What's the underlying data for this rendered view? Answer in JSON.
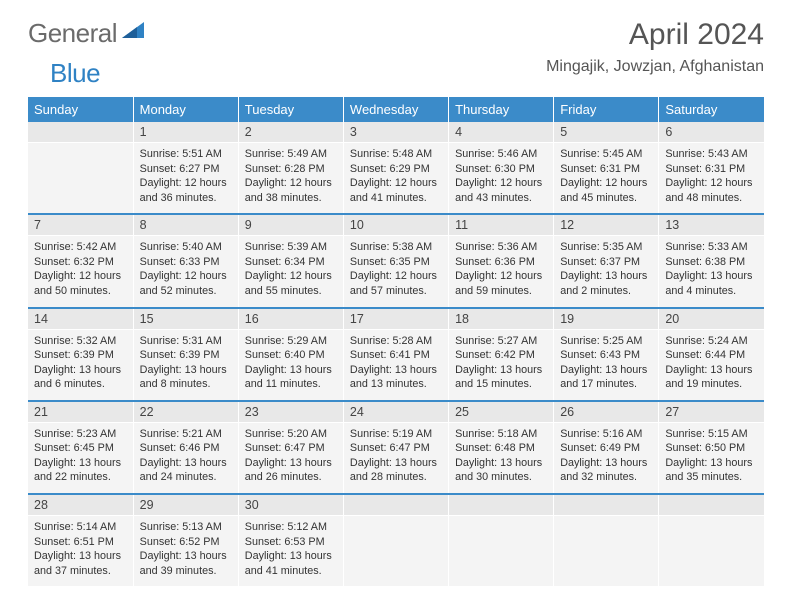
{
  "brand": {
    "word1": "General",
    "word2": "Blue"
  },
  "title": "April 2024",
  "location": "Mingajik, Jowzjan, Afghanistan",
  "colors": {
    "header_bg": "#3b8bc9",
    "header_text": "#ffffff",
    "daynum_bg": "#e8e8e8",
    "cell_bg": "#f4f4f4",
    "sep": "#3b8bc9",
    "logo_gray": "#6b6b6b",
    "logo_blue": "#2f82c4"
  },
  "weekdays": [
    "Sunday",
    "Monday",
    "Tuesday",
    "Wednesday",
    "Thursday",
    "Friday",
    "Saturday"
  ],
  "weeks": [
    {
      "nums": [
        "",
        "1",
        "2",
        "3",
        "4",
        "5",
        "6"
      ],
      "days": [
        null,
        {
          "sr": "Sunrise: 5:51 AM",
          "ss": "Sunset: 6:27 PM",
          "dl": "Daylight: 12 hours and 36 minutes."
        },
        {
          "sr": "Sunrise: 5:49 AM",
          "ss": "Sunset: 6:28 PM",
          "dl": "Daylight: 12 hours and 38 minutes."
        },
        {
          "sr": "Sunrise: 5:48 AM",
          "ss": "Sunset: 6:29 PM",
          "dl": "Daylight: 12 hours and 41 minutes."
        },
        {
          "sr": "Sunrise: 5:46 AM",
          "ss": "Sunset: 6:30 PM",
          "dl": "Daylight: 12 hours and 43 minutes."
        },
        {
          "sr": "Sunrise: 5:45 AM",
          "ss": "Sunset: 6:31 PM",
          "dl": "Daylight: 12 hours and 45 minutes."
        },
        {
          "sr": "Sunrise: 5:43 AM",
          "ss": "Sunset: 6:31 PM",
          "dl": "Daylight: 12 hours and 48 minutes."
        }
      ]
    },
    {
      "nums": [
        "7",
        "8",
        "9",
        "10",
        "11",
        "12",
        "13"
      ],
      "days": [
        {
          "sr": "Sunrise: 5:42 AM",
          "ss": "Sunset: 6:32 PM",
          "dl": "Daylight: 12 hours and 50 minutes."
        },
        {
          "sr": "Sunrise: 5:40 AM",
          "ss": "Sunset: 6:33 PM",
          "dl": "Daylight: 12 hours and 52 minutes."
        },
        {
          "sr": "Sunrise: 5:39 AM",
          "ss": "Sunset: 6:34 PM",
          "dl": "Daylight: 12 hours and 55 minutes."
        },
        {
          "sr": "Sunrise: 5:38 AM",
          "ss": "Sunset: 6:35 PM",
          "dl": "Daylight: 12 hours and 57 minutes."
        },
        {
          "sr": "Sunrise: 5:36 AM",
          "ss": "Sunset: 6:36 PM",
          "dl": "Daylight: 12 hours and 59 minutes."
        },
        {
          "sr": "Sunrise: 5:35 AM",
          "ss": "Sunset: 6:37 PM",
          "dl": "Daylight: 13 hours and 2 minutes."
        },
        {
          "sr": "Sunrise: 5:33 AM",
          "ss": "Sunset: 6:38 PM",
          "dl": "Daylight: 13 hours and 4 minutes."
        }
      ]
    },
    {
      "nums": [
        "14",
        "15",
        "16",
        "17",
        "18",
        "19",
        "20"
      ],
      "days": [
        {
          "sr": "Sunrise: 5:32 AM",
          "ss": "Sunset: 6:39 PM",
          "dl": "Daylight: 13 hours and 6 minutes."
        },
        {
          "sr": "Sunrise: 5:31 AM",
          "ss": "Sunset: 6:39 PM",
          "dl": "Daylight: 13 hours and 8 minutes."
        },
        {
          "sr": "Sunrise: 5:29 AM",
          "ss": "Sunset: 6:40 PM",
          "dl": "Daylight: 13 hours and 11 minutes."
        },
        {
          "sr": "Sunrise: 5:28 AM",
          "ss": "Sunset: 6:41 PM",
          "dl": "Daylight: 13 hours and 13 minutes."
        },
        {
          "sr": "Sunrise: 5:27 AM",
          "ss": "Sunset: 6:42 PM",
          "dl": "Daylight: 13 hours and 15 minutes."
        },
        {
          "sr": "Sunrise: 5:25 AM",
          "ss": "Sunset: 6:43 PM",
          "dl": "Daylight: 13 hours and 17 minutes."
        },
        {
          "sr": "Sunrise: 5:24 AM",
          "ss": "Sunset: 6:44 PM",
          "dl": "Daylight: 13 hours and 19 minutes."
        }
      ]
    },
    {
      "nums": [
        "21",
        "22",
        "23",
        "24",
        "25",
        "26",
        "27"
      ],
      "days": [
        {
          "sr": "Sunrise: 5:23 AM",
          "ss": "Sunset: 6:45 PM",
          "dl": "Daylight: 13 hours and 22 minutes."
        },
        {
          "sr": "Sunrise: 5:21 AM",
          "ss": "Sunset: 6:46 PM",
          "dl": "Daylight: 13 hours and 24 minutes."
        },
        {
          "sr": "Sunrise: 5:20 AM",
          "ss": "Sunset: 6:47 PM",
          "dl": "Daylight: 13 hours and 26 minutes."
        },
        {
          "sr": "Sunrise: 5:19 AM",
          "ss": "Sunset: 6:47 PM",
          "dl": "Daylight: 13 hours and 28 minutes."
        },
        {
          "sr": "Sunrise: 5:18 AM",
          "ss": "Sunset: 6:48 PM",
          "dl": "Daylight: 13 hours and 30 minutes."
        },
        {
          "sr": "Sunrise: 5:16 AM",
          "ss": "Sunset: 6:49 PM",
          "dl": "Daylight: 13 hours and 32 minutes."
        },
        {
          "sr": "Sunrise: 5:15 AM",
          "ss": "Sunset: 6:50 PM",
          "dl": "Daylight: 13 hours and 35 minutes."
        }
      ]
    },
    {
      "nums": [
        "28",
        "29",
        "30",
        "",
        "",
        "",
        ""
      ],
      "days": [
        {
          "sr": "Sunrise: 5:14 AM",
          "ss": "Sunset: 6:51 PM",
          "dl": "Daylight: 13 hours and 37 minutes."
        },
        {
          "sr": "Sunrise: 5:13 AM",
          "ss": "Sunset: 6:52 PM",
          "dl": "Daylight: 13 hours and 39 minutes."
        },
        {
          "sr": "Sunrise: 5:12 AM",
          "ss": "Sunset: 6:53 PM",
          "dl": "Daylight: 13 hours and 41 minutes."
        },
        null,
        null,
        null,
        null
      ]
    }
  ]
}
